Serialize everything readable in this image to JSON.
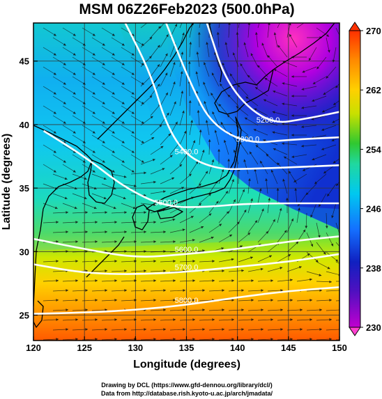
{
  "title": "MSM 06Z26Feb2023 (500.0hPa)",
  "x_axis": {
    "label": "Longitude (degrees)",
    "range": [
      120,
      150
    ],
    "ticks": [
      "120",
      "125",
      "130",
      "135",
      "140",
      "145",
      "150"
    ]
  },
  "y_axis": {
    "label": "Latitude  (degrees)",
    "range": [
      23,
      48
    ],
    "ticks": [
      "25",
      "30",
      "35",
      "40",
      "45"
    ]
  },
  "colorbar": {
    "range": [
      230,
      270
    ],
    "ticks": [
      "230",
      "238",
      "246",
      "254",
      "262",
      "270"
    ],
    "colors": [
      "#c000d0",
      "#1020c0",
      "#1470ff",
      "#00c8f0",
      "#20d880",
      "#30c830",
      "#c8e000",
      "#ffd000",
      "#ff8a00",
      "#ff3000"
    ]
  },
  "contours": {
    "color": "#ffffff",
    "labels": [
      "5200.0",
      "5300.0",
      "5400.0",
      "5500.0",
      "5600.0",
      "5700.0",
      "5800.0"
    ],
    "lines": [
      {
        "label": "5200.0",
        "points": [
          [
            137,
            48
          ],
          [
            139,
            43
          ],
          [
            143,
            40
          ],
          [
            147,
            40.5
          ],
          [
            150,
            41
          ]
        ]
      },
      {
        "label": "5300.0",
        "points": [
          [
            133,
            48
          ],
          [
            135.5,
            43
          ],
          [
            137.5,
            40
          ],
          [
            141,
            38.5
          ],
          [
            145,
            38.8
          ],
          [
            150,
            39
          ]
        ]
      },
      {
        "label": "5400.0",
        "points": [
          [
            129,
            48
          ],
          [
            131.5,
            44
          ],
          [
            133,
            40
          ],
          [
            135,
            37.5
          ],
          [
            138,
            36.5
          ],
          [
            141,
            36.5
          ],
          [
            150,
            36.8
          ]
        ]
      },
      {
        "label": "5500.0",
        "points": [
          [
            121,
            39.5
          ],
          [
            125,
            37.5
          ],
          [
            129,
            35
          ],
          [
            133,
            33.5
          ],
          [
            137,
            33.5
          ],
          [
            141,
            33.8
          ],
          [
            150,
            33.8
          ]
        ]
      },
      {
        "label": "5600.0",
        "points": [
          [
            120,
            31
          ],
          [
            125,
            30.2
          ],
          [
            130,
            29.5
          ],
          [
            135,
            29.8
          ],
          [
            140,
            30.2
          ],
          [
            145,
            30.8
          ],
          [
            150,
            31.2
          ]
        ]
      },
      {
        "label": "5700.0",
        "points": [
          [
            120,
            29
          ],
          [
            125,
            28.3
          ],
          [
            130,
            28.2
          ],
          [
            135,
            28.4
          ],
          [
            140,
            28.8
          ],
          [
            145,
            29.2
          ],
          [
            150,
            29.8
          ]
        ]
      },
      {
        "label": "5800.0",
        "points": [
          [
            120,
            25.1
          ],
          [
            125,
            25.2
          ],
          [
            130,
            25.4
          ],
          [
            135,
            25.8
          ],
          [
            140,
            26.4
          ],
          [
            145,
            26.9
          ],
          [
            150,
            27.2
          ]
        ]
      }
    ]
  },
  "credits": [
    "Drawing by DCL (https://www.gfd-dennou.org/library/dcl/)",
    "Data from http://database.rish.kyoto-u.ac.jp/arch/jmadata/"
  ]
}
